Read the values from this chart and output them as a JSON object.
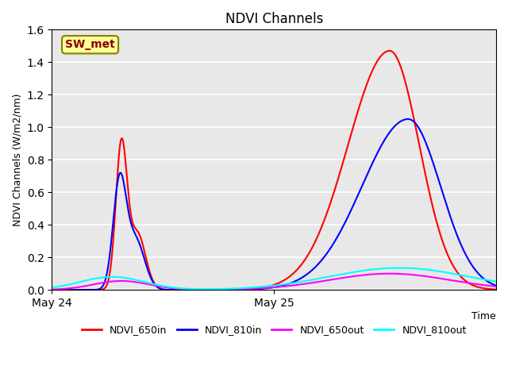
{
  "title": "NDVI Channels",
  "xlabel": "Time",
  "ylabel": "NDVI Channels (W/m2/nm)",
  "ylim": [
    0.0,
    1.6
  ],
  "yticks": [
    0.0,
    0.2,
    0.4,
    0.6,
    0.8,
    1.0,
    1.2,
    1.4,
    1.6
  ],
  "xtick_labels": [
    "May 24",
    "May 25"
  ],
  "xtick_positions": [
    0,
    24
  ],
  "xlim": [
    0,
    48
  ],
  "annotation_label": "SW_met",
  "annotation_color": "#8B0000",
  "annotation_bg": "#FFFF99",
  "annotation_edgecolor": "#808000",
  "legend_entries": [
    "NDVI_650in",
    "NDVI_810in",
    "NDVI_650out",
    "NDVI_810out"
  ],
  "line_colors": [
    "red",
    "blue",
    "magenta",
    "cyan"
  ],
  "plot_bg_color": "#e8e8e8",
  "fig_bg_color": "#ffffff",
  "grid_color": "white",
  "linewidth": 1.5
}
